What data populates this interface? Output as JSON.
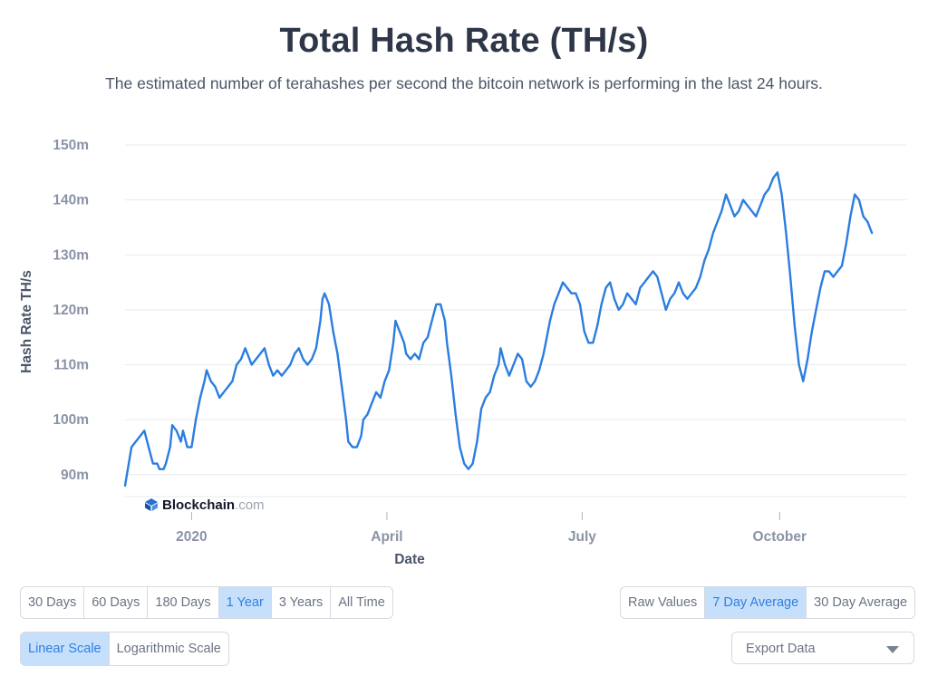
{
  "header": {
    "title": "Total Hash Rate (TH/s)",
    "subtitle": "The estimated number of terahashes per second the bitcoin network is performing in the last 24 hours."
  },
  "watermark": {
    "name": "Blockchain",
    "suffix": ".com"
  },
  "colors": {
    "line": "#2b7de0",
    "grid": "#e6e9ee",
    "active": "#c6e0fb"
  },
  "range_buttons": [
    {
      "label": "30 Days",
      "active": false
    },
    {
      "label": "60 Days",
      "active": false
    },
    {
      "label": "180 Days",
      "active": false
    },
    {
      "label": "1 Year",
      "active": true
    },
    {
      "label": "3 Years",
      "active": false
    },
    {
      "label": "All Time",
      "active": false
    }
  ],
  "average_buttons": [
    {
      "label": "Raw Values",
      "active": false
    },
    {
      "label": "7 Day Average",
      "active": true
    },
    {
      "label": "30 Day Average",
      "active": false
    }
  ],
  "scale_buttons": [
    {
      "label": "Linear Scale",
      "active": true
    },
    {
      "label": "Logarithmic Scale",
      "active": false
    }
  ],
  "export": {
    "label": "Export Data"
  },
  "chart_data": {
    "type": "line",
    "title": "Total Hash Rate (TH/s)",
    "xlabel": "Date",
    "ylabel": "Hash Rate TH/s",
    "x_tick_labels": [
      "2020",
      "April",
      "July",
      "October"
    ],
    "y_tick_labels": [
      "90m",
      "100m",
      "110m",
      "120m",
      "130m",
      "140m",
      "150m"
    ],
    "y_ticks": [
      90,
      100,
      110,
      120,
      130,
      140,
      150
    ],
    "ylim": [
      86,
      150
    ],
    "x_unit": "days since 2019-12-01",
    "x_ticks": [
      31,
      122,
      213,
      305
    ],
    "xlim": [
      0,
      364
    ],
    "grid": true,
    "legend": "none",
    "series": [
      {
        "name": "Hash Rate TH/s",
        "points": [
          [
            0,
            88
          ],
          [
            3,
            95
          ],
          [
            5,
            96
          ],
          [
            7,
            97
          ],
          [
            9,
            98
          ],
          [
            11,
            95
          ],
          [
            13,
            92
          ],
          [
            15,
            92
          ],
          [
            16,
            91
          ],
          [
            18,
            91
          ],
          [
            19,
            92
          ],
          [
            21,
            95
          ],
          [
            22,
            99
          ],
          [
            24,
            98
          ],
          [
            26,
            96
          ],
          [
            27,
            98
          ],
          [
            29,
            95
          ],
          [
            31,
            95
          ],
          [
            33,
            100
          ],
          [
            35,
            104
          ],
          [
            37,
            107
          ],
          [
            38,
            109
          ],
          [
            40,
            107
          ],
          [
            42,
            106
          ],
          [
            44,
            104
          ],
          [
            46,
            105
          ],
          [
            48,
            106
          ],
          [
            50,
            107
          ],
          [
            52,
            110
          ],
          [
            54,
            111
          ],
          [
            56,
            113
          ],
          [
            58,
            111
          ],
          [
            59,
            110
          ],
          [
            61,
            111
          ],
          [
            63,
            112
          ],
          [
            65,
            113
          ],
          [
            67,
            110
          ],
          [
            69,
            108
          ],
          [
            71,
            109
          ],
          [
            73,
            108
          ],
          [
            75,
            109
          ],
          [
            77,
            110
          ],
          [
            79,
            112
          ],
          [
            81,
            113
          ],
          [
            83,
            111
          ],
          [
            85,
            110
          ],
          [
            87,
            111
          ],
          [
            89,
            113
          ],
          [
            91,
            118
          ],
          [
            92,
            122
          ],
          [
            93,
            123
          ],
          [
            95,
            121
          ],
          [
            97,
            116
          ],
          [
            99,
            112
          ],
          [
            101,
            106
          ],
          [
            103,
            100
          ],
          [
            104,
            96
          ],
          [
            106,
            95
          ],
          [
            108,
            95
          ],
          [
            110,
            97
          ],
          [
            111,
            100
          ],
          [
            113,
            101
          ],
          [
            115,
            103
          ],
          [
            117,
            105
          ],
          [
            119,
            104
          ],
          [
            121,
            107
          ],
          [
            123,
            109
          ],
          [
            125,
            114
          ],
          [
            126,
            118
          ],
          [
            128,
            116
          ],
          [
            130,
            114
          ],
          [
            131,
            112
          ],
          [
            133,
            111
          ],
          [
            135,
            112
          ],
          [
            137,
            111
          ],
          [
            139,
            114
          ],
          [
            141,
            115
          ],
          [
            143,
            118
          ],
          [
            145,
            121
          ],
          [
            147,
            121
          ],
          [
            149,
            118
          ],
          [
            150,
            114
          ],
          [
            152,
            108
          ],
          [
            154,
            101
          ],
          [
            156,
            95
          ],
          [
            158,
            92
          ],
          [
            160,
            91
          ],
          [
            162,
            92
          ],
          [
            164,
            96
          ],
          [
            166,
            102
          ],
          [
            168,
            104
          ],
          [
            170,
            105
          ],
          [
            172,
            108
          ],
          [
            174,
            110
          ],
          [
            175,
            113
          ],
          [
            177,
            110
          ],
          [
            179,
            108
          ],
          [
            181,
            110
          ],
          [
            183,
            112
          ],
          [
            185,
            111
          ],
          [
            187,
            107
          ],
          [
            189,
            106
          ],
          [
            191,
            107
          ],
          [
            193,
            109
          ],
          [
            195,
            112
          ],
          [
            196,
            114
          ],
          [
            198,
            118
          ],
          [
            200,
            121
          ],
          [
            202,
            123
          ],
          [
            204,
            125
          ],
          [
            206,
            124
          ],
          [
            208,
            123
          ],
          [
            210,
            123
          ],
          [
            212,
            121
          ],
          [
            214,
            116
          ],
          [
            216,
            114
          ],
          [
            218,
            114
          ],
          [
            220,
            117
          ],
          [
            222,
            121
          ],
          [
            224,
            124
          ],
          [
            226,
            125
          ],
          [
            228,
            122
          ],
          [
            230,
            120
          ],
          [
            232,
            121
          ],
          [
            234,
            123
          ],
          [
            236,
            122
          ],
          [
            238,
            121
          ],
          [
            240,
            124
          ],
          [
            242,
            125
          ],
          [
            244,
            126
          ],
          [
            246,
            127
          ],
          [
            248,
            126
          ],
          [
            250,
            123
          ],
          [
            252,
            120
          ],
          [
            254,
            122
          ],
          [
            256,
            123
          ],
          [
            258,
            125
          ],
          [
            260,
            123
          ],
          [
            262,
            122
          ],
          [
            264,
            123
          ],
          [
            266,
            124
          ],
          [
            268,
            126
          ],
          [
            270,
            129
          ],
          [
            272,
            131
          ],
          [
            274,
            134
          ],
          [
            276,
            136
          ],
          [
            278,
            138
          ],
          [
            280,
            141
          ],
          [
            282,
            139
          ],
          [
            284,
            137
          ],
          [
            286,
            138
          ],
          [
            288,
            140
          ],
          [
            290,
            139
          ],
          [
            292,
            138
          ],
          [
            294,
            137
          ],
          [
            296,
            139
          ],
          [
            298,
            141
          ],
          [
            300,
            142
          ],
          [
            302,
            144
          ],
          [
            304,
            145
          ],
          [
            306,
            141
          ],
          [
            308,
            134
          ],
          [
            310,
            126
          ],
          [
            312,
            117
          ],
          [
            314,
            110
          ],
          [
            316,
            107
          ],
          [
            318,
            111
          ],
          [
            320,
            116
          ],
          [
            322,
            120
          ],
          [
            324,
            124
          ],
          [
            326,
            127
          ],
          [
            328,
            127
          ],
          [
            330,
            126
          ],
          [
            332,
            127
          ],
          [
            334,
            128
          ],
          [
            336,
            132
          ],
          [
            338,
            137
          ],
          [
            340,
            141
          ],
          [
            342,
            140
          ],
          [
            344,
            137
          ],
          [
            346,
            136
          ],
          [
            348,
            134
          ]
        ]
      }
    ]
  }
}
